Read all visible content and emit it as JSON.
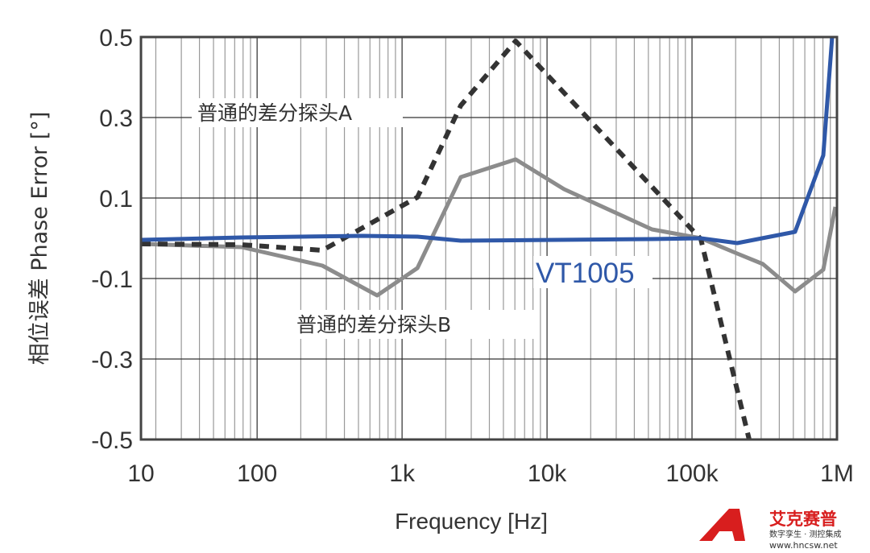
{
  "chart_data": {
    "type": "line",
    "xscale": "log",
    "xlabel": "Frequency [Hz]",
    "ylabel": "相位误差 Phase Error [°]",
    "xlim": [
      15.8,
      1000000
    ],
    "ylim": [
      -0.5,
      0.5
    ],
    "xticks": [
      {
        "value": 10,
        "label": "10"
      },
      {
        "value": 100,
        "label": "100"
      },
      {
        "value": 1000,
        "label": "1k"
      },
      {
        "value": 10000,
        "label": "10k"
      },
      {
        "value": 100000,
        "label": "100k"
      },
      {
        "value": 1000000,
        "label": "1M"
      }
    ],
    "yticks": [
      {
        "value": 0.5,
        "label": "0.5"
      },
      {
        "value": 0.3,
        "label": "0.3"
      },
      {
        "value": 0.1,
        "label": "0.1"
      },
      {
        "value": -0.1,
        "label": "-0.1"
      },
      {
        "value": -0.3,
        "label": "-0.3"
      },
      {
        "value": -0.5,
        "label": "-0.5"
      }
    ],
    "grid": true,
    "series": [
      {
        "name": "普通的差分探头A",
        "color": "#333333",
        "style": "dashed",
        "x": [
          15.8,
          78,
          282,
          1276,
          2540,
          6070,
          115000,
          248000
        ],
        "y": [
          -0.014,
          -0.016,
          -0.03,
          0.102,
          0.33,
          0.49,
          -0.002,
          -0.5
        ]
      },
      {
        "name": "普通的差分探头B",
        "color": "#8c8c8c",
        "style": "solid",
        "x": [
          15.8,
          78,
          282,
          673,
          1276,
          2540,
          6070,
          13100,
          53000,
          115000,
          205000,
          308000,
          514000,
          805000,
          975000
        ],
        "y": [
          -0.014,
          -0.022,
          -0.068,
          -0.142,
          -0.074,
          0.152,
          0.196,
          0.122,
          0.022,
          0.0,
          -0.038,
          -0.064,
          -0.132,
          -0.078,
          0.078
        ]
      },
      {
        "name": "VT1005",
        "color": "#2f58a8",
        "style": "solid",
        "x": [
          15.8,
          78,
          534,
          1276,
          2540,
          53000,
          115000,
          205000,
          514000,
          805000,
          926000
        ],
        "y": [
          -0.004,
          0.002,
          0.006,
          0.004,
          -0.006,
          -0.002,
          0.0,
          -0.012,
          0.016,
          0.206,
          0.5
        ]
      }
    ],
    "annotations": [
      {
        "text": "普通的差分探头A",
        "series": 0
      },
      {
        "text": "普通的差分探头B",
        "series": 1
      },
      {
        "text": "VT1005",
        "series": 2
      }
    ]
  },
  "logo": {
    "brand": "艾克赛普",
    "tagline": "数字孪生 · 测控集成",
    "url": "www.hncsw.net"
  }
}
